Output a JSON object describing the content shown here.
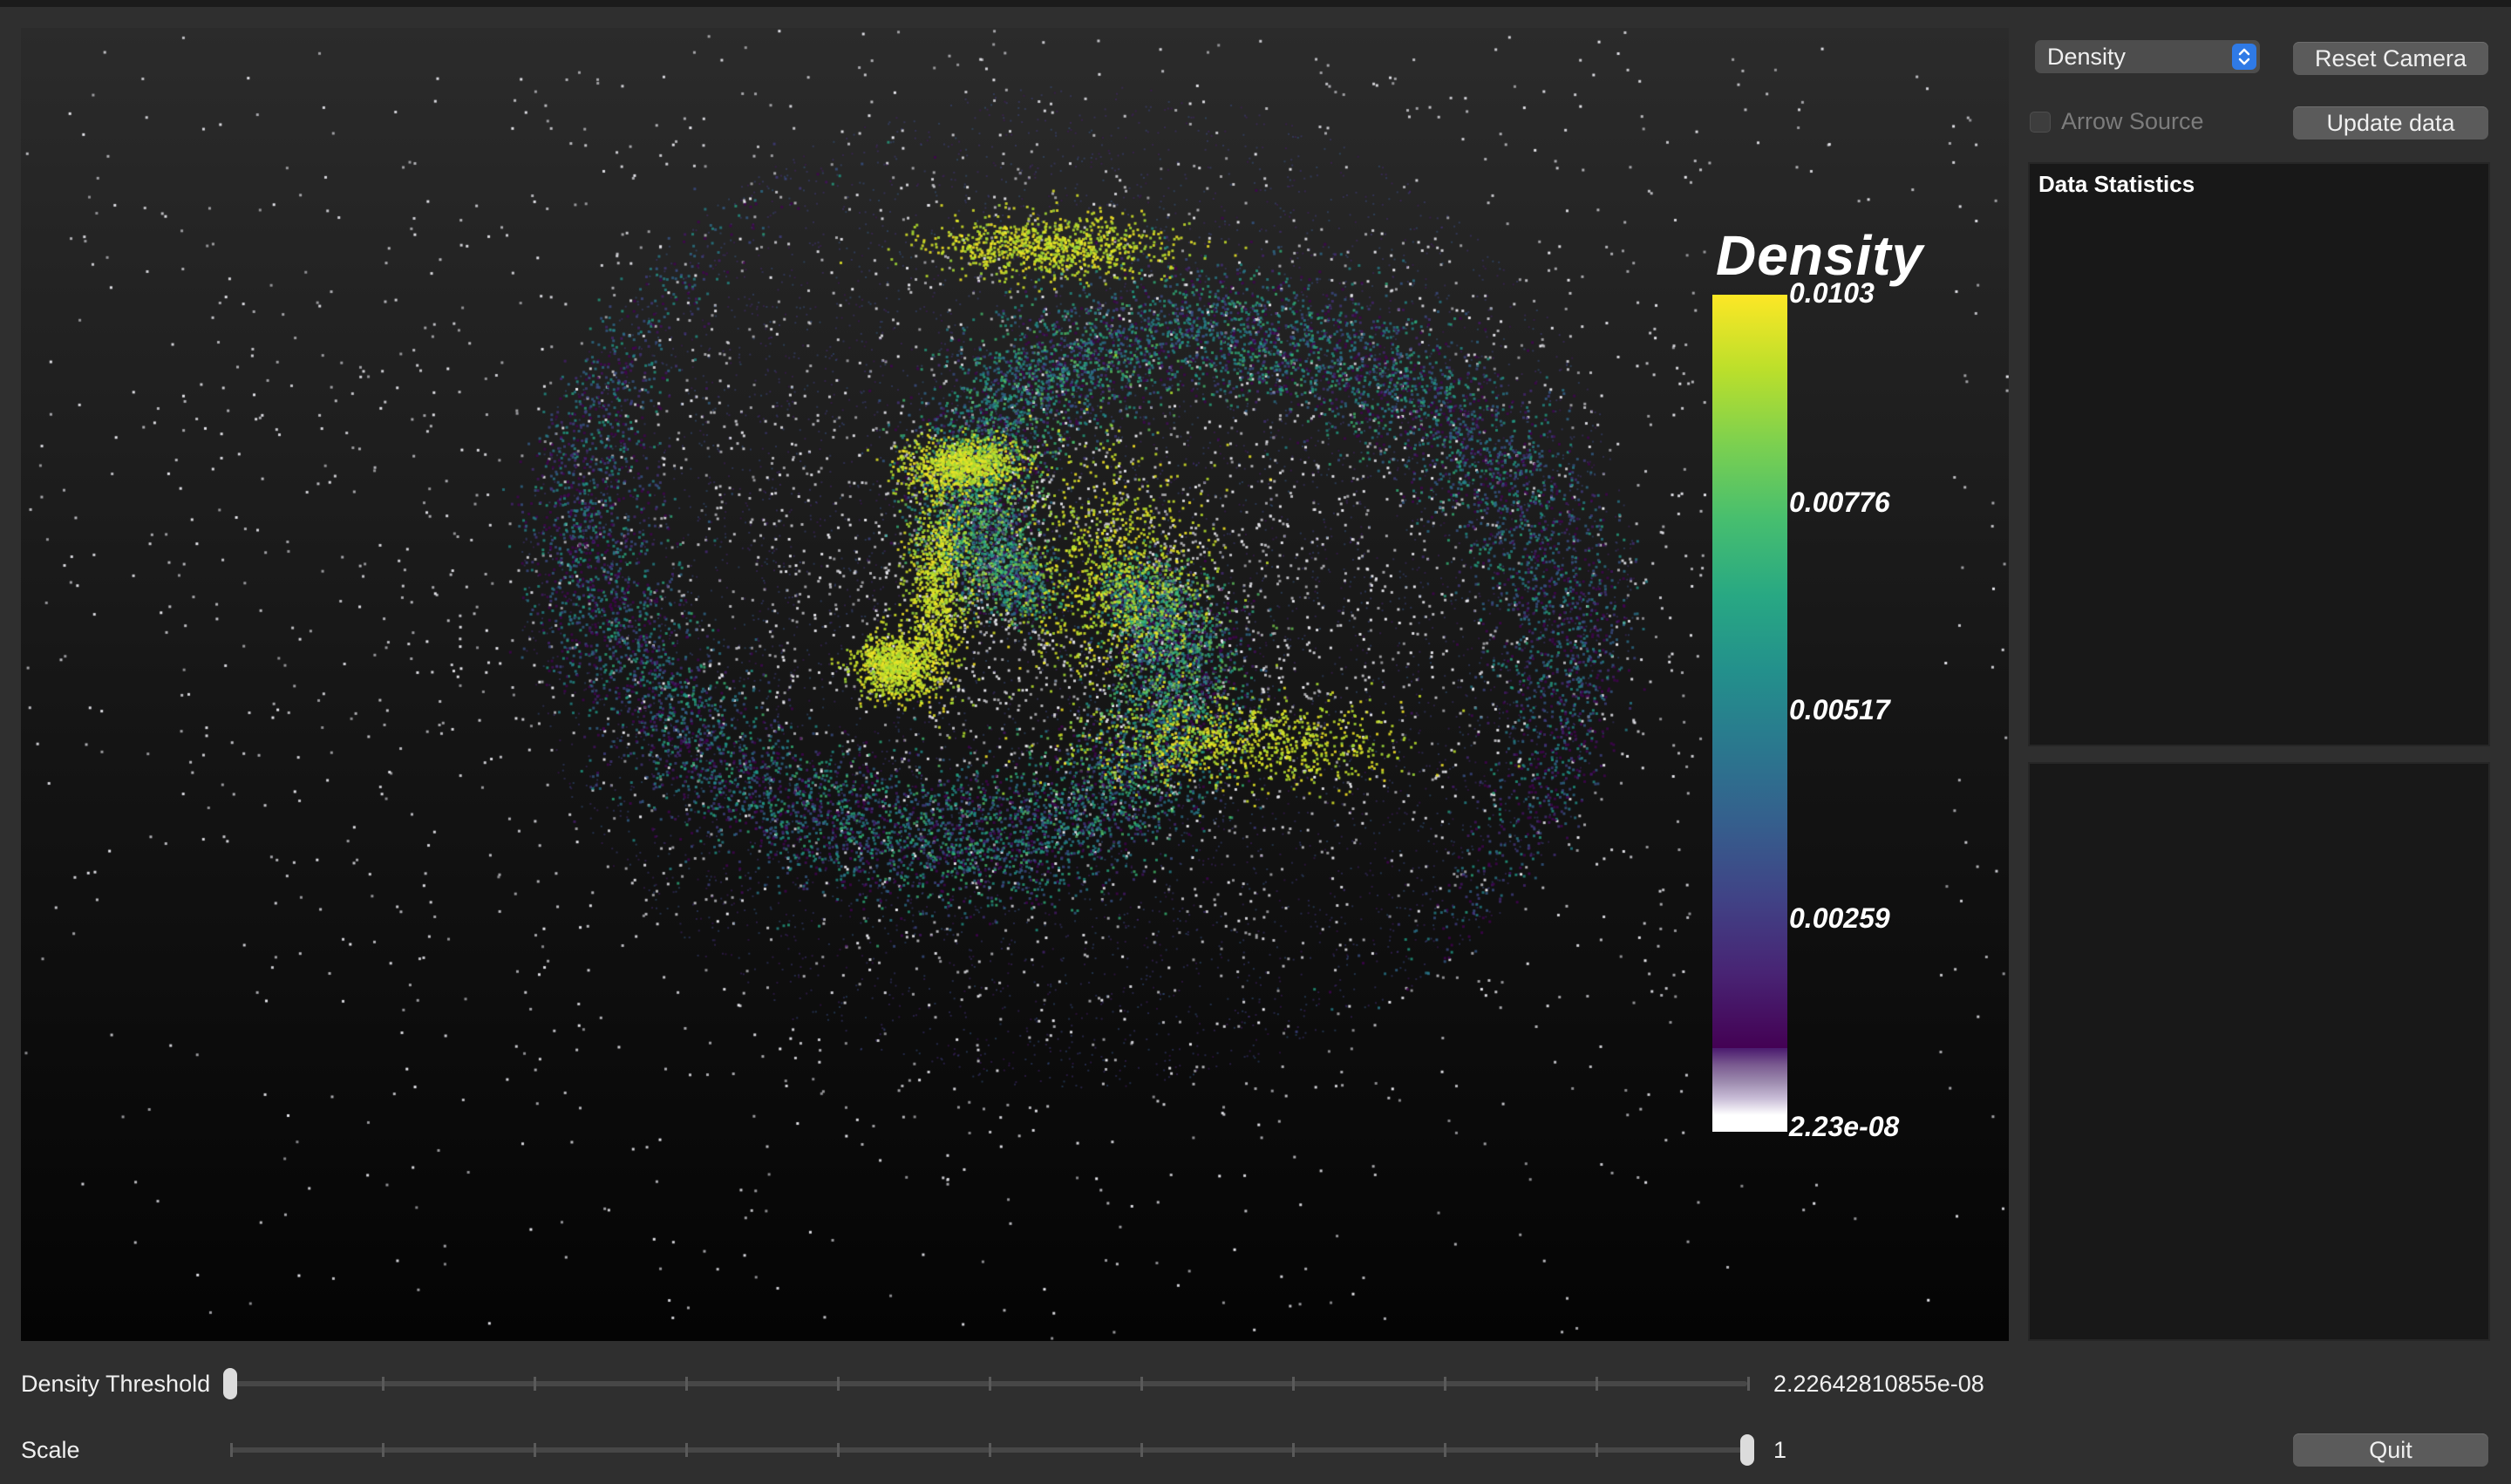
{
  "colors": {
    "window_bg": "#2f2f2f",
    "accent": "#2f7ae6",
    "point_white": "#e8e8ee"
  },
  "render_view": {
    "colorbar": {
      "title": "Density",
      "colormap": "viridis",
      "range": [
        2.23e-08,
        0.0103
      ],
      "tick_labels": [
        "0.0103",
        "0.00776",
        "0.00517",
        "0.00259",
        "2.23e-08"
      ]
    }
  },
  "controls": {
    "array_combo": {
      "value": "Density",
      "icon": "chevron-up-down-icon"
    },
    "reset_camera_label": "Reset Camera",
    "arrow_source_label": "Arrow Source",
    "arrow_source_checked": false,
    "update_data_label": "Update data",
    "quit_label": "Quit"
  },
  "panels": {
    "statistics_title": "Data Statistics"
  },
  "sliders": {
    "density_threshold": {
      "label": "Density Threshold",
      "value_text": "2.22642810855e-08",
      "position": 0.0
    },
    "scale": {
      "label": "Scale",
      "value_text": "1",
      "position": 1.0
    }
  }
}
